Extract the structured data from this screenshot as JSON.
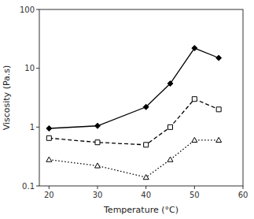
{
  "chart_data": {
    "type": "line",
    "xlabel": "Temperature (°C)",
    "ylabel": "Viscosity (Pa.s)",
    "x": [
      20,
      30,
      40,
      45,
      50,
      55
    ],
    "series": [
      {
        "color": "#000000",
        "marker": "diamond",
        "line_style": "solid",
        "values": [
          0.95,
          1.05,
          2.2,
          5.5,
          22.0,
          15.0
        ]
      },
      {
        "color": "#000000",
        "marker": "open-square",
        "line_style": "dashed",
        "values": [
          0.65,
          0.55,
          0.5,
          1.0,
          3.0,
          2.0
        ]
      },
      {
        "color": "#000000",
        "marker": "open-triangle",
        "line_style": "dotted",
        "values": [
          0.28,
          0.22,
          0.14,
          0.28,
          0.6,
          0.6
        ]
      }
    ],
    "xlim": [
      18,
      60
    ],
    "ylim": [
      0.1,
      100
    ],
    "xticks": [
      20,
      30,
      40,
      50,
      60
    ],
    "yticks": [
      0.1,
      1,
      10,
      100
    ],
    "log": "y",
    "grid": false
  }
}
